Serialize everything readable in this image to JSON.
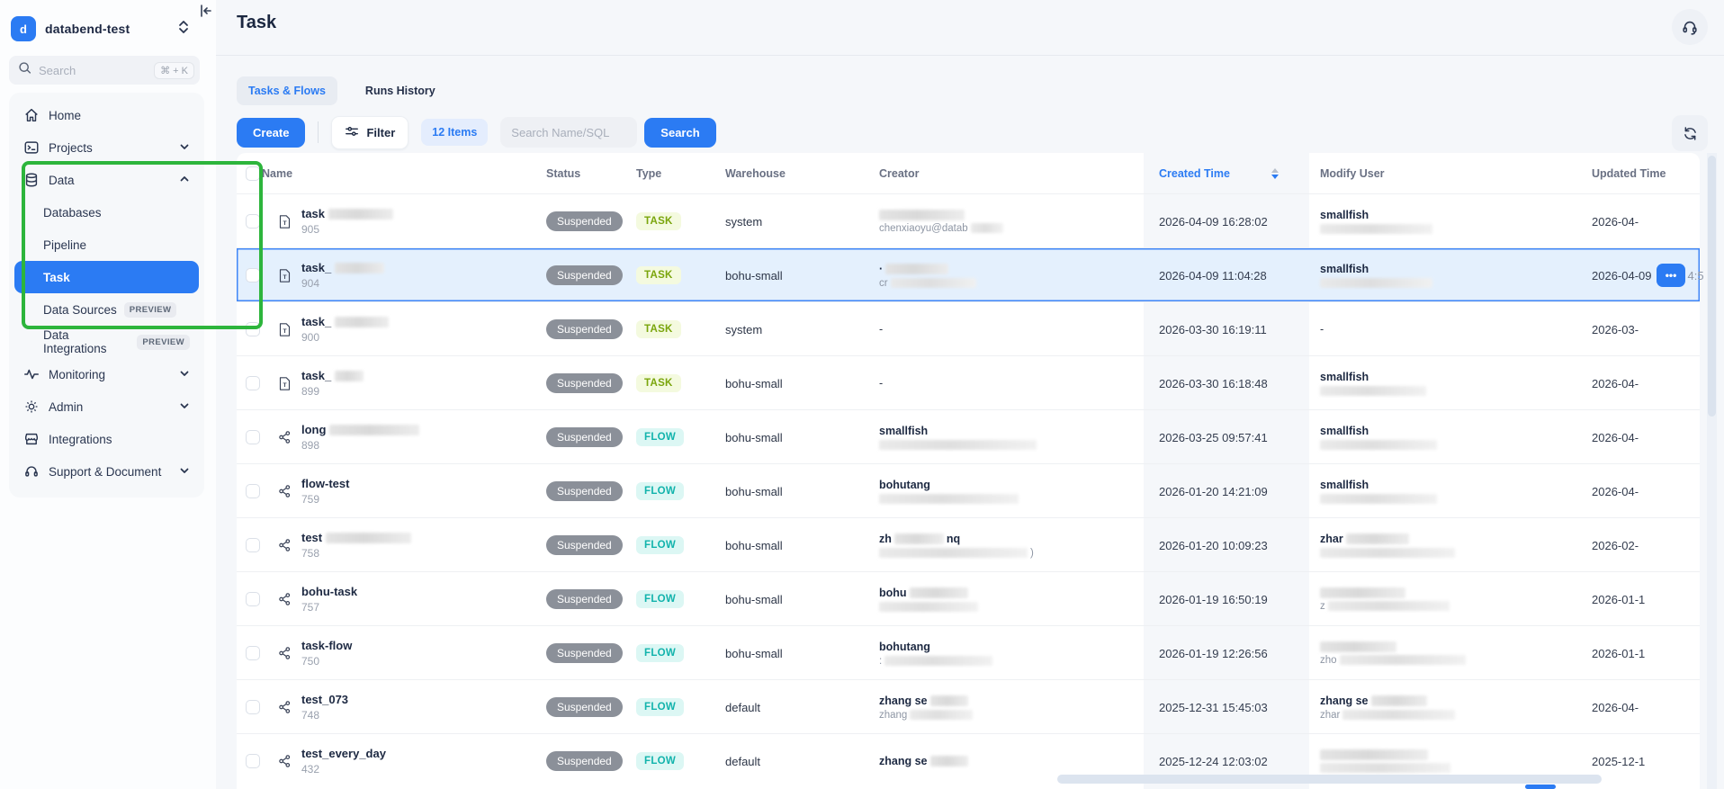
{
  "colors": {
    "accent": "#2b7bf3",
    "annotation_green": "#2db53c",
    "status_gray": "#8b9099",
    "task_badge": "#7aa50c",
    "flow_badge": "#12b3ac",
    "selected_row_bg": "#e4f0fd"
  },
  "workspace": {
    "initial": "d",
    "name": "databend-test"
  },
  "sidebar": {
    "search": {
      "placeholder": "Search",
      "shortcut": "⌘ + K"
    },
    "items": [
      {
        "label": "Home",
        "icon": "home"
      },
      {
        "label": "Projects",
        "icon": "projects",
        "chevron": "down"
      },
      {
        "label": "Data",
        "icon": "data",
        "chevron": "up"
      },
      {
        "label": "Databases",
        "child": true
      },
      {
        "label": "Pipeline",
        "child": true
      },
      {
        "label": "Task",
        "child": true,
        "selected": true
      },
      {
        "label": "Data Sources",
        "child": true,
        "badge": "PREVIEW"
      },
      {
        "label": "Data Integrations",
        "child": true,
        "badge": "PREVIEW"
      },
      {
        "label": "Monitoring",
        "icon": "monitoring",
        "chevron": "down"
      },
      {
        "label": "Admin",
        "icon": "admin",
        "chevron": "down"
      },
      {
        "label": "Integrations",
        "icon": "integrations"
      },
      {
        "label": "Support & Document",
        "icon": "support",
        "chevron": "down"
      }
    ]
  },
  "page": {
    "title": "Task"
  },
  "tabs": [
    {
      "label": "Tasks & Flows",
      "active": true
    },
    {
      "label": "Runs History",
      "active": false
    }
  ],
  "toolbar": {
    "create_label": "Create",
    "filter_label": "Filter",
    "count_label": "12 Items",
    "search_placeholder": "Search Name/SQL",
    "search_label": "Search"
  },
  "table": {
    "columns": [
      "Name",
      "Status",
      "Type",
      "Warehouse",
      "Creator",
      "Created Time",
      "Modify User",
      "Updated Time"
    ],
    "sorted_column": "Created Time",
    "sort_direction": "desc",
    "rows": [
      {
        "name": "task",
        "name_blur": 72,
        "id": "905",
        "status": "Suspended",
        "type": "TASK",
        "warehouse": "system",
        "creator": {
          "t1": "",
          "b1": 95,
          "t2": "chenxiaoyu@datab",
          "b2": 36
        },
        "created": "2026-04-09 16:28:02",
        "modify": {
          "t1": "smallfish",
          "b1": 0,
          "t2": "",
          "b2": 125
        },
        "updated": "2026-04-"
      },
      {
        "name": "task_",
        "name_blur": 55,
        "id": "904",
        "status": "Suspended",
        "type": "TASK",
        "warehouse": "bohu-small",
        "creator": {
          "t1": "·",
          "b1": 70,
          "t2": "cr",
          "b2": 95
        },
        "created": "2026-04-09 11:04:28",
        "modify": {
          "t1": "smallfish",
          "b1": 0,
          "t2": "",
          "b2": 125
        },
        "updated": "2026-04-09",
        "updated_extra": "4:5",
        "selected": true,
        "actions": "•••"
      },
      {
        "name": "task_",
        "name_blur": 60,
        "id": "900",
        "status": "Suspended",
        "type": "TASK",
        "warehouse": "system",
        "creator": {
          "t1": "-"
        },
        "created": "2026-03-30 16:19:11",
        "modify": {
          "t1": "-"
        },
        "updated": "2026-03-"
      },
      {
        "name": "task_",
        "name_blur": 32,
        "id": "899",
        "status": "Suspended",
        "type": "TASK",
        "warehouse": "bohu-small",
        "creator": {
          "t1": "-"
        },
        "created": "2026-03-30 16:18:48",
        "modify": {
          "t1": "smallfish",
          "b1": 0,
          "t2": "",
          "b2": 118
        },
        "updated": "2026-04-"
      },
      {
        "name": "long",
        "name_blur": 100,
        "id": "898",
        "status": "Suspended",
        "type": "FLOW",
        "warehouse": "bohu-small",
        "creator": {
          "t1": "smallfish",
          "b1": 0,
          "t2": "",
          "b2": 175
        },
        "created": "2026-03-25 09:57:41",
        "modify": {
          "t1": "smallfish",
          "b1": 0,
          "t2": "",
          "b2": 130
        },
        "updated": "2026-04-"
      },
      {
        "name": "flow-test",
        "name_blur": 0,
        "id": "759",
        "status": "Suspended",
        "type": "FLOW",
        "warehouse": "bohu-small",
        "creator": {
          "t1": "bohutang",
          "b1": 0,
          "t2": "",
          "b2": 155
        },
        "created": "2026-01-20 14:21:09",
        "modify": {
          "t1": "smallfish",
          "b1": 0,
          "t2": "",
          "b2": 130
        },
        "updated": "2026-04-"
      },
      {
        "name": "test",
        "name_blur": 95,
        "id": "758",
        "status": "Suspended",
        "type": "FLOW",
        "warehouse": "bohu-small",
        "creator": {
          "t1": "zh",
          "b1": 55,
          "t1b": "nq",
          "t2": "",
          "b2": 165,
          "t2b": ")"
        },
        "created": "2026-01-20 10:09:23",
        "modify": {
          "t1": "zhar",
          "b1": 70,
          "t2": "",
          "b2": 150
        },
        "updated": "2026-02-"
      },
      {
        "name": "bohu-task",
        "name_blur": 0,
        "id": "757",
        "status": "Suspended",
        "type": "FLOW",
        "warehouse": "bohu-small",
        "creator": {
          "t1": "bohu",
          "b1": 65,
          "t2": "",
          "b2": 110
        },
        "created": "2026-01-19 16:50:19",
        "modify": {
          "t1": "",
          "b1": 95,
          "t2": "z",
          "b2": 135
        },
        "updated": "2026-01-1"
      },
      {
        "name": "task-flow",
        "name_blur": 0,
        "id": "750",
        "status": "Suspended",
        "type": "FLOW",
        "warehouse": "bohu-small",
        "creator": {
          "t1": "bohutang",
          "b1": 0,
          "t2": ":",
          "b2": 120
        },
        "created": "2026-01-19 12:26:56",
        "modify": {
          "t1": "",
          "b1": 85,
          "t2": "zho",
          "b2": 140
        },
        "updated": "2026-01-1"
      },
      {
        "name": "test_073",
        "name_blur": 0,
        "id": "748",
        "status": "Suspended",
        "type": "FLOW",
        "warehouse": "default",
        "creator": {
          "t1": "zhang se",
          "b1": 42,
          "t2": "zhang",
          "b2": 70
        },
        "created": "2025-12-31 15:45:03",
        "modify": {
          "t1": "zhang se",
          "b1": 62,
          "t2": "zhar",
          "b2": 125
        },
        "updated": "2026-04-"
      },
      {
        "name": "test_every_day",
        "name_blur": 0,
        "id": "432",
        "status": "Suspended",
        "type": "FLOW",
        "warehouse": "default",
        "creator": {
          "t1": "zhang se",
          "b1": 42
        },
        "created": "2025-12-24 12:03:02",
        "modify": {
          "t1": "",
          "b1": 120,
          "t2": "",
          "b2": 145
        },
        "updated": "2025-12-1"
      }
    ]
  }
}
